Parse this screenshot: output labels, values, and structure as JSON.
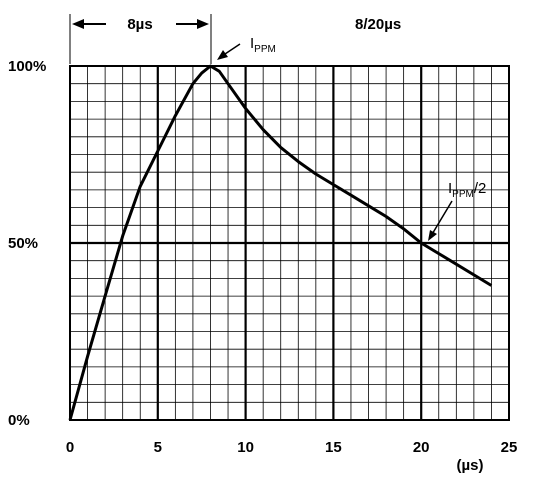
{
  "chart_data": {
    "type": "line",
    "title": "",
    "xlabel": "",
    "ylabel": "",
    "x_unit_label": "(µs)",
    "xlim": [
      0,
      25
    ],
    "ylim": [
      0,
      100
    ],
    "grid": true,
    "x_ticks": [
      "0",
      "5",
      "10",
      "15",
      "20",
      "25"
    ],
    "y_ticks": [
      "0%",
      "50%",
      "100%"
    ],
    "series": [
      {
        "x": [
          0,
          1,
          2,
          3,
          4,
          5,
          6,
          7,
          7.5,
          8,
          8.5,
          9,
          10,
          11,
          12,
          13,
          14,
          15,
          16,
          17,
          18,
          19,
          20,
          21,
          22,
          23,
          24
        ],
        "y": [
          0,
          18,
          35,
          52,
          66,
          76,
          86,
          95,
          98,
          100,
          98.5,
          95,
          88,
          82,
          77,
          73,
          69.5,
          66.5,
          63.5,
          60.5,
          57.5,
          54,
          50,
          47,
          44,
          41,
          38
        ]
      }
    ],
    "annotations": {
      "rise_label": "8µs",
      "peak_label_main": "I",
      "peak_label_sub": "PPM",
      "waveform_label": "8/20µs",
      "half_label_main": "I",
      "half_label_sub": "PPM",
      "half_label_suffix": "/2"
    }
  }
}
